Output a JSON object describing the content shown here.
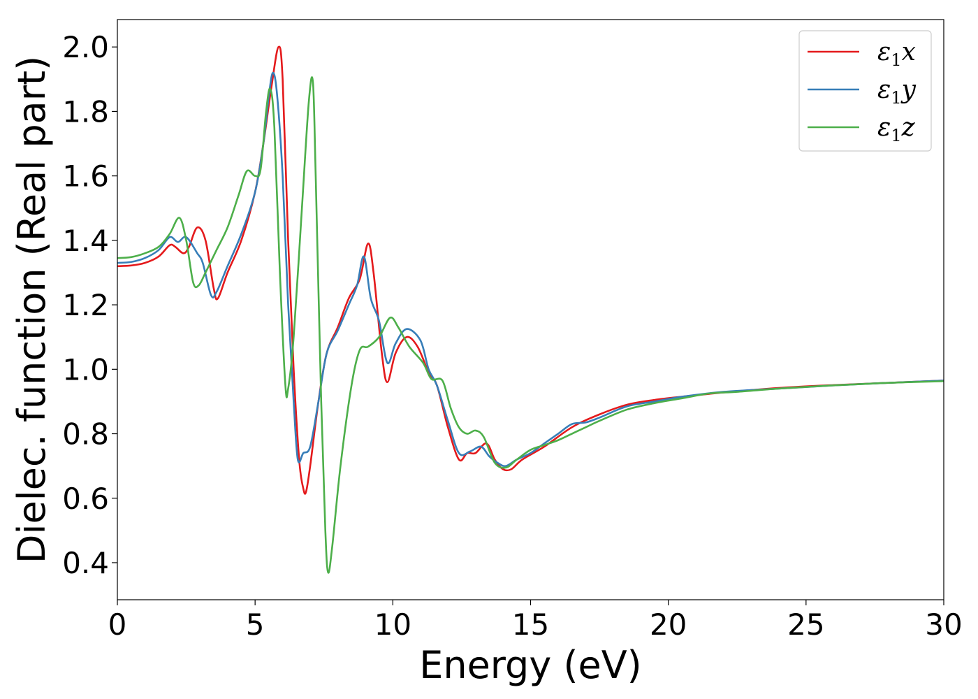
{
  "chart_data": {
    "type": "line",
    "xlabel": "Energy (eV)",
    "ylabel": "Dielec. function (Real part)",
    "xlim": [
      0,
      30
    ],
    "ylim": [
      0.285,
      2.085
    ],
    "xticks": [
      0,
      5,
      10,
      15,
      20,
      25,
      30
    ],
    "xtick_labels": [
      "0",
      "5",
      "10",
      "15",
      "20",
      "25",
      "30"
    ],
    "yticks": [
      0.4,
      0.6,
      0.8,
      1.0,
      1.2,
      1.4,
      1.6,
      1.8,
      2.0
    ],
    "ytick_labels": [
      "0.4",
      "0.6",
      "0.8",
      "1.0",
      "1.2",
      "1.4",
      "1.6",
      "1.8",
      "2.0"
    ],
    "grid": false,
    "legend_position": "top-right",
    "series": [
      {
        "name": "ε1x",
        "label_main": "ε",
        "label_sub": "1",
        "label_suffix": "x",
        "color": "#e41a1c",
        "points": [
          [
            0,
            1.32
          ],
          [
            0.5,
            1.322
          ],
          [
            1.0,
            1.33
          ],
          [
            1.5,
            1.35
          ],
          [
            1.9,
            1.385
          ],
          [
            2.1,
            1.38
          ],
          [
            2.4,
            1.36
          ],
          [
            2.6,
            1.38
          ],
          [
            2.9,
            1.44
          ],
          [
            3.2,
            1.4
          ],
          [
            3.5,
            1.25
          ],
          [
            3.65,
            1.22
          ],
          [
            4.0,
            1.3
          ],
          [
            4.5,
            1.4
          ],
          [
            5.0,
            1.55
          ],
          [
            5.3,
            1.7
          ],
          [
            5.6,
            1.88
          ],
          [
            5.85,
            2.0
          ],
          [
            6.0,
            1.9
          ],
          [
            6.2,
            1.4
          ],
          [
            6.4,
            1.0
          ],
          [
            6.6,
            0.72
          ],
          [
            6.75,
            0.63
          ],
          [
            6.85,
            0.62
          ],
          [
            7.0,
            0.7
          ],
          [
            7.3,
            0.9
          ],
          [
            7.6,
            1.05
          ],
          [
            8.0,
            1.13
          ],
          [
            8.4,
            1.22
          ],
          [
            8.8,
            1.28
          ],
          [
            9.1,
            1.39
          ],
          [
            9.3,
            1.3
          ],
          [
            9.6,
            1.05
          ],
          [
            9.8,
            0.96
          ],
          [
            10.1,
            1.05
          ],
          [
            10.5,
            1.1
          ],
          [
            10.9,
            1.07
          ],
          [
            11.3,
            0.99
          ],
          [
            11.6,
            0.95
          ],
          [
            12.0,
            0.82
          ],
          [
            12.4,
            0.72
          ],
          [
            12.7,
            0.74
          ],
          [
            13.0,
            0.74
          ],
          [
            13.4,
            0.77
          ],
          [
            13.7,
            0.72
          ],
          [
            14.0,
            0.69
          ],
          [
            14.3,
            0.69
          ],
          [
            14.7,
            0.72
          ],
          [
            15.5,
            0.76
          ],
          [
            16.5,
            0.82
          ],
          [
            17.5,
            0.86
          ],
          [
            18.5,
            0.89
          ],
          [
            19.5,
            0.905
          ],
          [
            20.5,
            0.915
          ],
          [
            22,
            0.928
          ],
          [
            24,
            0.942
          ],
          [
            26,
            0.951
          ],
          [
            28,
            0.958
          ],
          [
            30,
            0.965
          ]
        ]
      },
      {
        "name": "ε1y",
        "label_main": "ε",
        "label_sub": "1",
        "label_suffix": "y",
        "color": "#377eb8",
        "points": [
          [
            0,
            1.33
          ],
          [
            0.5,
            1.333
          ],
          [
            1.0,
            1.345
          ],
          [
            1.5,
            1.37
          ],
          [
            1.9,
            1.41
          ],
          [
            2.2,
            1.395
          ],
          [
            2.5,
            1.41
          ],
          [
            2.9,
            1.36
          ],
          [
            3.1,
            1.33
          ],
          [
            3.4,
            1.23
          ],
          [
            3.6,
            1.24
          ],
          [
            4.0,
            1.32
          ],
          [
            4.5,
            1.42
          ],
          [
            5.0,
            1.55
          ],
          [
            5.3,
            1.7
          ],
          [
            5.5,
            1.85
          ],
          [
            5.65,
            1.92
          ],
          [
            5.8,
            1.85
          ],
          [
            6.0,
            1.6
          ],
          [
            6.2,
            1.2
          ],
          [
            6.4,
            0.9
          ],
          [
            6.55,
            0.72
          ],
          [
            6.75,
            0.74
          ],
          [
            7.0,
            0.76
          ],
          [
            7.3,
            0.9
          ],
          [
            7.6,
            1.05
          ],
          [
            8.0,
            1.12
          ],
          [
            8.4,
            1.2
          ],
          [
            8.7,
            1.26
          ],
          [
            8.95,
            1.35
          ],
          [
            9.2,
            1.22
          ],
          [
            9.5,
            1.15
          ],
          [
            9.8,
            1.02
          ],
          [
            10.1,
            1.08
          ],
          [
            10.5,
            1.125
          ],
          [
            11.0,
            1.09
          ],
          [
            11.3,
            1.0
          ],
          [
            11.6,
            0.95
          ],
          [
            12.0,
            0.84
          ],
          [
            12.4,
            0.74
          ],
          [
            12.8,
            0.745
          ],
          [
            13.2,
            0.76
          ],
          [
            13.5,
            0.73
          ],
          [
            13.8,
            0.71
          ],
          [
            14.1,
            0.7
          ],
          [
            14.5,
            0.72
          ],
          [
            15.0,
            0.74
          ],
          [
            15.5,
            0.77
          ],
          [
            16.0,
            0.8
          ],
          [
            16.5,
            0.83
          ],
          [
            17.0,
            0.835
          ],
          [
            17.5,
            0.85
          ],
          [
            18.5,
            0.885
          ],
          [
            19.5,
            0.9
          ],
          [
            20.5,
            0.915
          ],
          [
            22,
            0.93
          ],
          [
            24,
            0.94
          ],
          [
            26,
            0.95
          ],
          [
            28,
            0.958
          ],
          [
            30,
            0.965
          ]
        ]
      },
      {
        "name": "ε1z",
        "label_main": "ε",
        "label_sub": "1",
        "label_suffix": "z",
        "color": "#4daf4a",
        "points": [
          [
            0,
            1.345
          ],
          [
            0.5,
            1.348
          ],
          [
            1.0,
            1.36
          ],
          [
            1.5,
            1.38
          ],
          [
            1.9,
            1.42
          ],
          [
            2.25,
            1.47
          ],
          [
            2.5,
            1.4
          ],
          [
            2.75,
            1.27
          ],
          [
            2.95,
            1.26
          ],
          [
            3.2,
            1.3
          ],
          [
            3.6,
            1.37
          ],
          [
            4.0,
            1.44
          ],
          [
            4.4,
            1.54
          ],
          [
            4.7,
            1.615
          ],
          [
            5.0,
            1.6
          ],
          [
            5.2,
            1.62
          ],
          [
            5.4,
            1.8
          ],
          [
            5.55,
            1.87
          ],
          [
            5.7,
            1.75
          ],
          [
            5.9,
            1.3
          ],
          [
            6.1,
            0.95
          ],
          [
            6.2,
            0.94
          ],
          [
            6.4,
            1.1
          ],
          [
            6.7,
            1.5
          ],
          [
            6.95,
            1.83
          ],
          [
            7.1,
            1.89
          ],
          [
            7.2,
            1.6
          ],
          [
            7.4,
            0.9
          ],
          [
            7.55,
            0.5
          ],
          [
            7.65,
            0.37
          ],
          [
            7.8,
            0.45
          ],
          [
            8.1,
            0.7
          ],
          [
            8.5,
            0.95
          ],
          [
            8.8,
            1.06
          ],
          [
            9.1,
            1.07
          ],
          [
            9.5,
            1.1
          ],
          [
            9.9,
            1.16
          ],
          [
            10.2,
            1.13
          ],
          [
            10.6,
            1.07
          ],
          [
            11.1,
            1.02
          ],
          [
            11.4,
            0.97
          ],
          [
            11.8,
            0.965
          ],
          [
            12.1,
            0.88
          ],
          [
            12.4,
            0.82
          ],
          [
            12.7,
            0.8
          ],
          [
            13.0,
            0.81
          ],
          [
            13.3,
            0.79
          ],
          [
            13.7,
            0.71
          ],
          [
            14.1,
            0.695
          ],
          [
            14.5,
            0.72
          ],
          [
            15.0,
            0.75
          ],
          [
            15.5,
            0.765
          ],
          [
            16.0,
            0.78
          ],
          [
            16.5,
            0.8
          ],
          [
            17.0,
            0.82
          ],
          [
            17.5,
            0.84
          ],
          [
            18.5,
            0.875
          ],
          [
            19.5,
            0.895
          ],
          [
            20.5,
            0.91
          ],
          [
            21.5,
            0.925
          ],
          [
            22.5,
            0.93
          ],
          [
            24,
            0.94
          ],
          [
            26,
            0.95
          ],
          [
            28,
            0.958
          ],
          [
            30,
            0.963
          ]
        ]
      }
    ]
  }
}
